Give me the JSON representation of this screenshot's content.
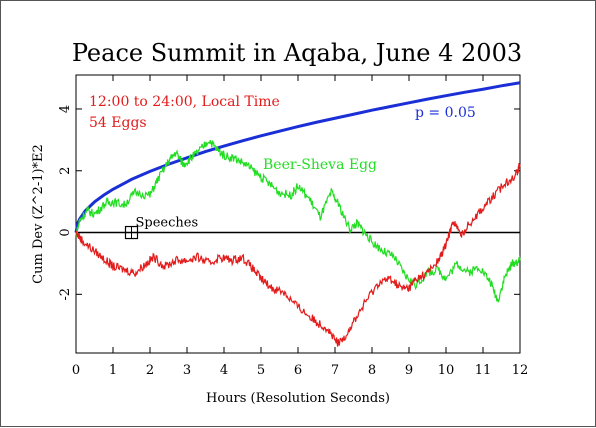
{
  "colors": {
    "background": "#ffffff",
    "axes": "#000000",
    "red_series": "#e31b1b",
    "green_series": "#22dd22",
    "blue_series": "#1a2fd6"
  },
  "chart_data": {
    "type": "line",
    "title": "Peace Summit in Aqaba, June 4 2003",
    "xlabel": "Hours (Resolution Seconds)",
    "ylabel": "Cum Dev (Z^2-1)*E2",
    "xlim": [
      0,
      12
    ],
    "ylim": [
      -3.9,
      5.1
    ],
    "xticks": [
      0,
      1,
      2,
      3,
      4,
      5,
      6,
      7,
      8,
      9,
      10,
      11,
      12
    ],
    "yticks": [
      -2,
      0,
      2,
      4
    ],
    "grid": false,
    "annotations": {
      "time_range": "12:00 to 24:00, Local Time",
      "eggs": "54 Eggs",
      "speeches_label": "Speeches",
      "speeches_x": 1.5,
      "speeches_y": 0,
      "green_label": "Beer-Sheva Egg",
      "p_label": "p = 0.05"
    },
    "series": [
      {
        "name": "p = 0.05",
        "color": "blue",
        "x": [
          0,
          0.05,
          0.1,
          0.25,
          0.5,
          0.75,
          1,
          1.5,
          2,
          2.5,
          3,
          3.5,
          4,
          4.5,
          5,
          5.5,
          6,
          6.5,
          7,
          7.5,
          8,
          8.5,
          9,
          9.5,
          10,
          10.5,
          11,
          11.5,
          12
        ],
        "y": [
          0,
          0.31,
          0.44,
          0.7,
          0.99,
          1.21,
          1.4,
          1.72,
          1.98,
          2.21,
          2.42,
          2.62,
          2.8,
          2.97,
          3.13,
          3.28,
          3.43,
          3.57,
          3.7,
          3.83,
          3.96,
          4.08,
          4.2,
          4.32,
          4.43,
          4.54,
          4.64,
          4.75,
          4.85
        ]
      },
      {
        "name": "Beer-Sheva Egg",
        "color": "green",
        "x": [
          0,
          0.1,
          0.3,
          0.5,
          0.8,
          1,
          1.3,
          1.6,
          2,
          2.2,
          2.5,
          2.7,
          2.9,
          3.1,
          3.3,
          3.6,
          3.8,
          4,
          4.3,
          4.6,
          4.9,
          5.2,
          5.5,
          5.8,
          6,
          6.3,
          6.6,
          6.9,
          7.1,
          7.4,
          7.6,
          7.8,
          8,
          8.3,
          8.6,
          8.9,
          9.2,
          9.5,
          9.8,
          10,
          10.3,
          10.6,
          10.9,
          11.2,
          11.4,
          11.6,
          11.8,
          12
        ],
        "y": [
          -0.1,
          0.4,
          0.7,
          0.6,
          0.95,
          1.0,
          0.9,
          1.3,
          1.2,
          1.7,
          2.3,
          2.6,
          2.2,
          2.4,
          2.6,
          3.0,
          2.7,
          2.5,
          2.4,
          2.2,
          1.9,
          1.6,
          1.3,
          1.2,
          1.5,
          1.1,
          0.5,
          1.3,
          0.9,
          0.1,
          0.3,
          0.0,
          -0.3,
          -0.6,
          -0.8,
          -1.4,
          -1.7,
          -1.3,
          -1.2,
          -1.5,
          -1.0,
          -1.3,
          -1.1,
          -1.6,
          -2.2,
          -1.4,
          -1.0,
          -0.9
        ]
      },
      {
        "name": "54 Eggs",
        "color": "red",
        "x": [
          0,
          0.2,
          0.5,
          0.8,
          1,
          1.3,
          1.6,
          1.9,
          2.1,
          2.4,
          2.7,
          3,
          3.3,
          3.6,
          3.9,
          4.2,
          4.5,
          4.8,
          5,
          5.3,
          5.6,
          5.9,
          6.2,
          6.5,
          6.8,
          7,
          7.1,
          7.3,
          7.6,
          7.9,
          8.2,
          8.5,
          8.8,
          9,
          9.2,
          9.5,
          9.8,
          10,
          10.2,
          10.4,
          10.7,
          11,
          11.3,
          11.6,
          11.9,
          12
        ],
        "y": [
          0,
          -0.3,
          -0.6,
          -0.9,
          -1.1,
          -1.2,
          -1.3,
          -1.0,
          -0.8,
          -1.1,
          -0.9,
          -0.9,
          -0.8,
          -1.0,
          -0.8,
          -0.9,
          -0.8,
          -1.2,
          -1.5,
          -1.8,
          -1.9,
          -2.3,
          -2.6,
          -2.9,
          -3.1,
          -3.5,
          -3.6,
          -3.3,
          -2.7,
          -2.1,
          -1.6,
          -1.5,
          -1.8,
          -1.8,
          -1.5,
          -1.3,
          -0.9,
          -0.4,
          0.4,
          -0.1,
          0.4,
          0.8,
          1.2,
          1.6,
          1.9,
          2.2
        ]
      }
    ]
  }
}
